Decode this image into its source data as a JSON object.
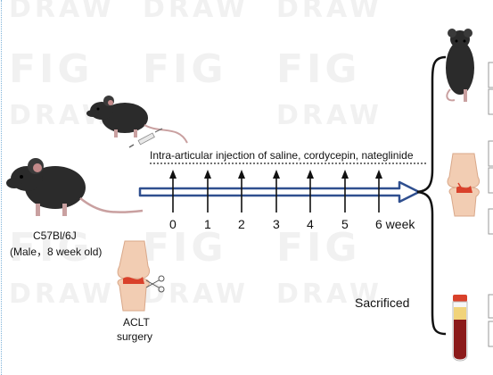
{
  "watermark": {
    "word1": "FIG",
    "word2": "DRAW"
  },
  "mouse_strain": "C57Bl/6J",
  "mouse_group": "(Male，8 week old)",
  "injection_label": "Intra-articular injection of saline, cordycepin, nateglinide",
  "timeline": {
    "ticks": [
      "0",
      "1",
      "2",
      "3",
      "4",
      "5",
      "6 week"
    ]
  },
  "surgery_label_line1": "ACLT",
  "surgery_label_line2": "surgery",
  "sacrificed_label": "Sacrificed",
  "colors": {
    "mouse": "#2b2b2b",
    "arrow_outline": "#2f4f8f",
    "cartilage_damage": "#d9412b",
    "bone": "#f2cdb3",
    "blood": "#8b1a1a",
    "serum": "#f1d37a"
  },
  "icons": [
    "mouse-icon",
    "syringe-icon",
    "knee-joint-icon",
    "scissors-icon",
    "blood-tube-icon"
  ]
}
